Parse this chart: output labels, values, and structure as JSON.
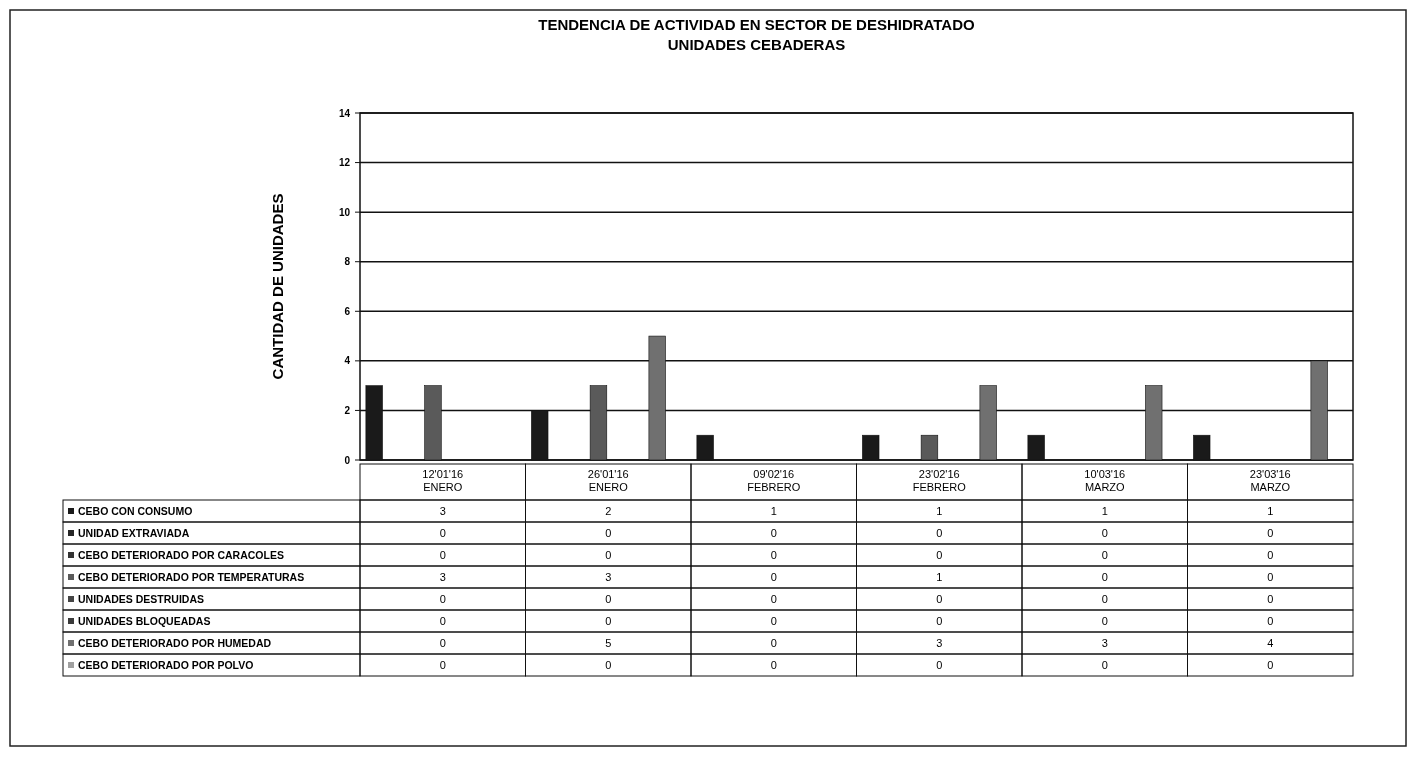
{
  "chart_data": {
    "type": "bar",
    "title": "TENDENCIA DE ACTIVIDAD EN SECTOR DE DESHIDRATADO",
    "subtitle": "UNIDADES CEBADERAS",
    "ylabel": "CANTIDAD DE UNIDADES",
    "categories": [
      "12'01'16\nENERO",
      "26'01'16\nENERO",
      "09'02'16\nFEBRERO",
      "23'02'16\nFEBRERO",
      "10'03'16\nMARZO",
      "23'03'16\nMARZO"
    ],
    "series": [
      {
        "name": "CEBO CON CONSUMO",
        "color": "#1a1a1a",
        "values": [
          3,
          2,
          1,
          1,
          1,
          1
        ]
      },
      {
        "name": "UNIDAD EXTRAVIADA",
        "color": "#262626",
        "values": [
          0,
          0,
          0,
          0,
          0,
          0
        ]
      },
      {
        "name": "CEBO DETERIORADO POR CARACOLES",
        "color": "#333333",
        "values": [
          0,
          0,
          0,
          0,
          0,
          0
        ]
      },
      {
        "name": "CEBO DETERIORADO POR TEMPERATURAS",
        "color": "#5a5a5a",
        "values": [
          3,
          3,
          0,
          1,
          0,
          0
        ]
      },
      {
        "name": "UNIDADES DESTRUIDAS",
        "color": "#444444",
        "values": [
          0,
          0,
          0,
          0,
          0,
          0
        ]
      },
      {
        "name": "UNIDADES BLOQUEADAS",
        "color": "#3a3a3a",
        "values": [
          0,
          0,
          0,
          0,
          0,
          0
        ]
      },
      {
        "name": "CEBO DETERIORADO POR HUMEDAD",
        "color": "#707070",
        "values": [
          0,
          5,
          0,
          3,
          3,
          4
        ]
      },
      {
        "name": "CEBO DETERIORADO POR POLVO",
        "color": "#a0a0a0",
        "values": [
          0,
          0,
          0,
          0,
          0,
          0
        ]
      }
    ],
    "ylim": [
      0,
      14
    ],
    "yticks": [
      0,
      2,
      4,
      6,
      8,
      10,
      12,
      14
    ],
    "grid": "y",
    "legend": "bottom",
    "data_labels": true
  }
}
